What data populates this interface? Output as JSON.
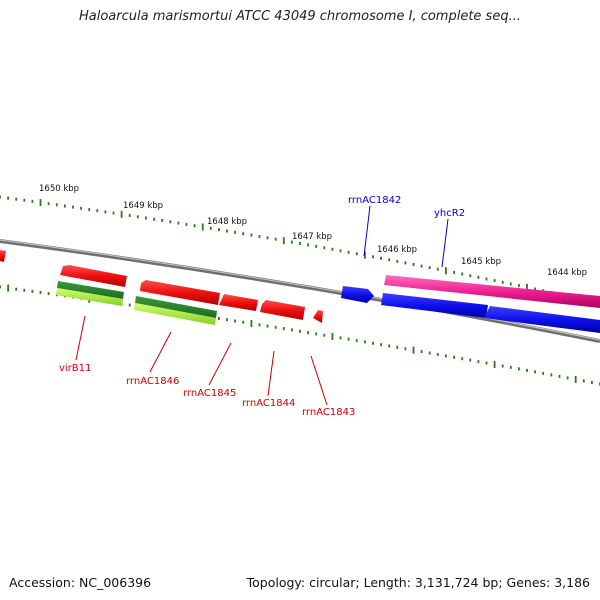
{
  "title": "Haloarcula marismortui ATCC 43049 chromosome I, complete seq...",
  "footer": {
    "accession": "Accession: NC_006396",
    "summary": "Topology: circular; Length: 3,131,724 bp; Genes: 3,186"
  },
  "scale_ticks": [
    "1650 kbp",
    "1649 kbp",
    "1648 kbp",
    "1647 kbp",
    "1646 kbp",
    "1645 kbp",
    "1644 kbp"
  ],
  "gene_labels": [
    {
      "name": "rrnAC1842",
      "color": "#0000cc"
    },
    {
      "name": "yhcR2",
      "color": "#0000cc"
    },
    {
      "name": "virB11",
      "color": "#cc0000"
    },
    {
      "name": "rrnAC1846",
      "color": "#cc0000"
    },
    {
      "name": "rrnAC1845",
      "color": "#cc0000"
    },
    {
      "name": "rrnAC1844",
      "color": "#cc0000"
    },
    {
      "name": "rrnAC1843",
      "color": "#cc0000"
    }
  ],
  "colors": {
    "backbone": "#8a8a8a",
    "ticks": "#2a7a1a",
    "forward_gene": "#1010ee",
    "reverse_gene": "#ee1010",
    "rna_gene": "#ee2090",
    "feature_dark": "#2f8a2f",
    "feature_light": "#aaf040"
  }
}
